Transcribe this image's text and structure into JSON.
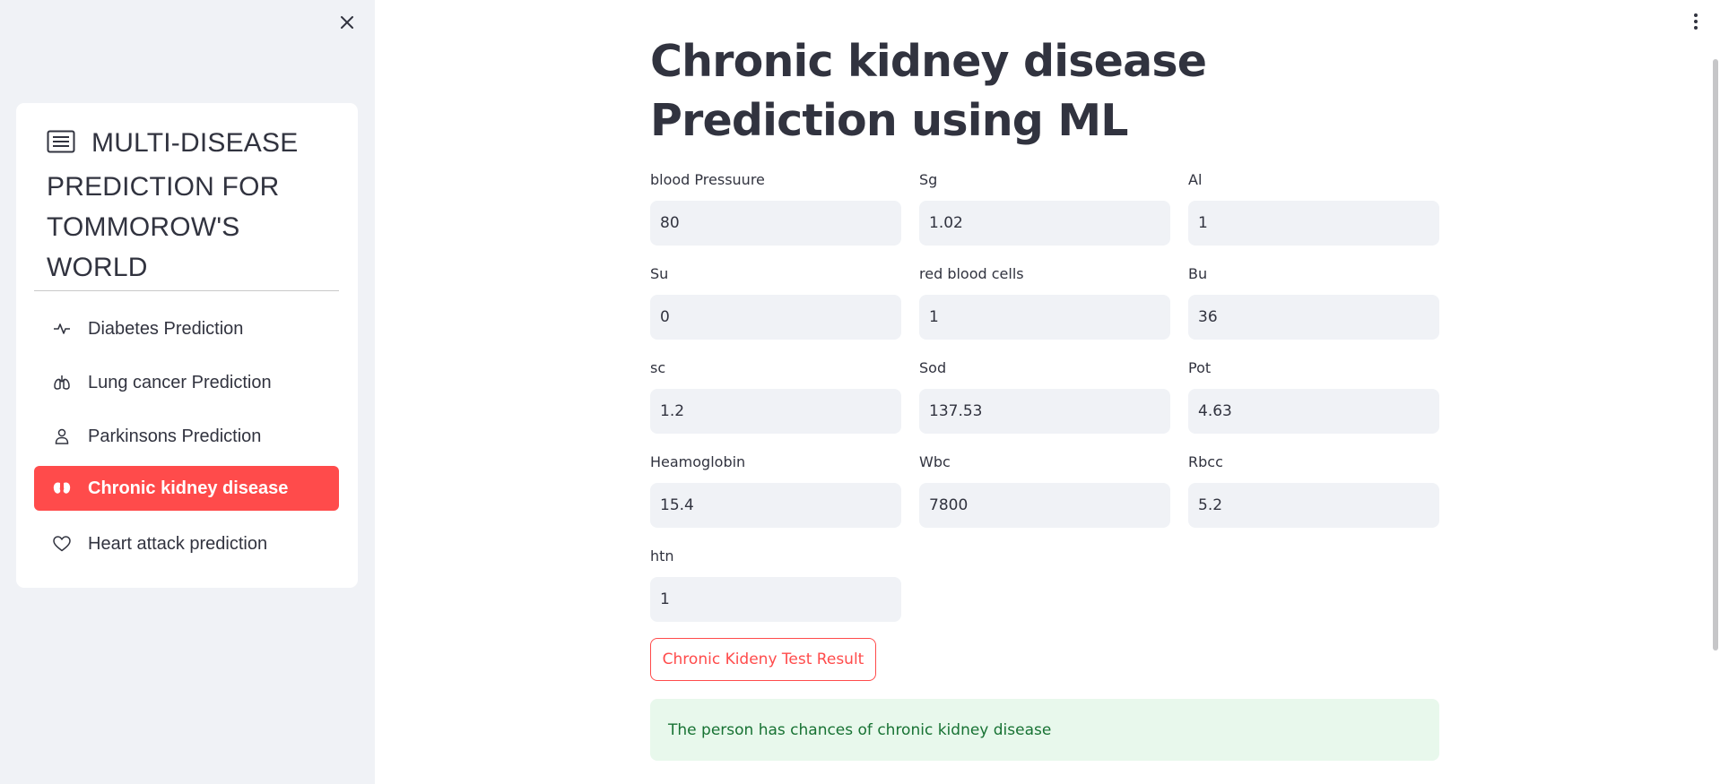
{
  "sidebar": {
    "menu_title": "MULTI-DISEASE PREDICTION FOR TOMMOROW'S WORLD",
    "items": [
      {
        "label": "Diabetes Prediction",
        "icon": "activity-icon",
        "active": false
      },
      {
        "label": "Lung cancer Prediction",
        "icon": "lungs-icon",
        "active": false
      },
      {
        "label": "Parkinsons Prediction",
        "icon": "person-icon",
        "active": false
      },
      {
        "label": "Chronic kidney disease",
        "icon": "kidney-icon",
        "active": true
      },
      {
        "label": "Heart attack prediction",
        "icon": "heart-icon",
        "active": false
      }
    ]
  },
  "main": {
    "title": "Chronic kidney disease Prediction using ML",
    "fields": [
      {
        "label": "blood Pressuure",
        "value": "80"
      },
      {
        "label": "Sg",
        "value": "1.02"
      },
      {
        "label": "Al",
        "value": "1"
      },
      {
        "label": "Su",
        "value": "0"
      },
      {
        "label": "red blood cells",
        "value": "1"
      },
      {
        "label": "Bu",
        "value": "36"
      },
      {
        "label": "sc",
        "value": "1.2"
      },
      {
        "label": "Sod",
        "value": "137.53"
      },
      {
        "label": "Pot",
        "value": "4.63"
      },
      {
        "label": "Heamoglobin",
        "value": "15.4"
      },
      {
        "label": "Wbc",
        "value": "7800"
      },
      {
        "label": "Rbcc",
        "value": "5.2"
      },
      {
        "label": "htn",
        "value": "1"
      }
    ],
    "button_label": "Chronic Kideny Test Result",
    "result_message": "The person has chances of chronic kidney disease"
  },
  "colors": {
    "accent": "#ff4b4b",
    "sidebar_bg": "#f0f2f6",
    "success_bg": "#e8f8ec",
    "success_text": "#177233"
  }
}
